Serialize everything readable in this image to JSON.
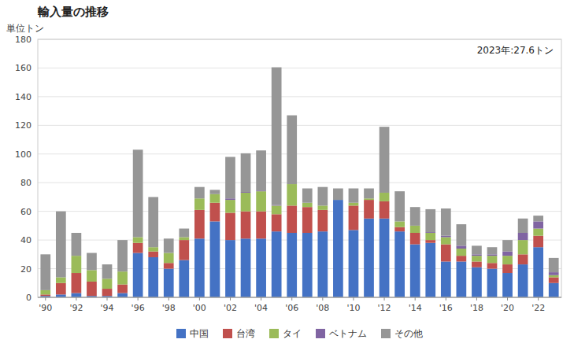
{
  "chart_data": {
    "type": "bar",
    "stacked": true,
    "title": "輸入量の推移",
    "ylabel": "単位トン",
    "annotation": "2023年:27.6トン",
    "categories": [
      "'90",
      null,
      "'92",
      null,
      "'94",
      null,
      "'96",
      null,
      "'98",
      null,
      "'00",
      null,
      "'02",
      null,
      "'04",
      null,
      "'06",
      null,
      "'08",
      null,
      "'10",
      null,
      "'12",
      null,
      "'14",
      null,
      "'16",
      null,
      "'18",
      null,
      "'20",
      null,
      "'22",
      null
    ],
    "series": [
      {
        "name": "中国",
        "color": "#4472c4",
        "values": [
          1.0,
          2.0,
          3.0,
          1.0,
          1.0,
          3.0,
          31.0,
          28.0,
          20.0,
          26.0,
          41.0,
          53.0,
          40.0,
          41.0,
          41.0,
          46.0,
          45.0,
          45.0,
          46.0,
          68.0,
          47.0,
          55.0,
          55.0,
          46.0,
          37.0,
          38.0,
          25.0,
          25.0,
          21.0,
          20.0,
          17.0,
          23.0,
          35.0,
          10.0
        ]
      },
      {
        "name": "台湾",
        "color": "#c0504d",
        "values": [
          1.0,
          8.0,
          14.0,
          10.0,
          5.0,
          6.0,
          7.0,
          4.0,
          4.0,
          14.0,
          20.0,
          13.0,
          19.0,
          19.0,
          19.0,
          12.0,
          19.0,
          18.0,
          15.0,
          0.0,
          17.0,
          13.0,
          12.0,
          3.0,
          8.0,
          2.0,
          12.0,
          4.0,
          4.0,
          4.0,
          6.0,
          7.0,
          8.0,
          4.0
        ]
      },
      {
        "name": "タイ",
        "color": "#9bbb59",
        "values": [
          3.0,
          4.0,
          12.0,
          8.0,
          7.0,
          9.0,
          4.0,
          3.0,
          7.0,
          2.0,
          8.0,
          6.0,
          9.0,
          13.0,
          14.0,
          6.0,
          15.0,
          3.0,
          3.0,
          0.0,
          2.0,
          1.0,
          6.0,
          4.0,
          5.0,
          5.0,
          5.0,
          5.0,
          4.0,
          5.0,
          6.0,
          10.0,
          5.0,
          1.5
        ]
      },
      {
        "name": "ベトナム",
        "color": "#8064a2",
        "values": [
          0.0,
          0.0,
          0.0,
          0.0,
          0.0,
          0.0,
          0.0,
          0.0,
          0.0,
          0.0,
          0.0,
          0.0,
          1.0,
          0.5,
          0.5,
          0.5,
          0.0,
          0.0,
          0.0,
          0.0,
          0.0,
          0.0,
          0.0,
          0.0,
          0.0,
          0.5,
          1.0,
          2.0,
          1.0,
          1.0,
          3.0,
          5.0,
          5.0,
          2.0
        ]
      },
      {
        "name": "その他",
        "color": "#969696",
        "values": [
          25.0,
          46.0,
          16.0,
          12.0,
          10.0,
          22.0,
          61.0,
          35.0,
          10.0,
          6.0,
          8.0,
          3.0,
          29.0,
          27.0,
          28.0,
          96.0,
          48.0,
          10.0,
          13.0,
          8.0,
          10.0,
          7.0,
          46.0,
          21.0,
          13.0,
          16.0,
          19.0,
          15.0,
          6.0,
          5.0,
          8.0,
          10.0,
          4.0,
          10.0
        ]
      }
    ],
    "ylim": [
      0,
      180
    ],
    "yticks": [
      0,
      20,
      40,
      60,
      80,
      100,
      120,
      140,
      160,
      180
    ],
    "grid": true,
    "legend": "bottom"
  }
}
